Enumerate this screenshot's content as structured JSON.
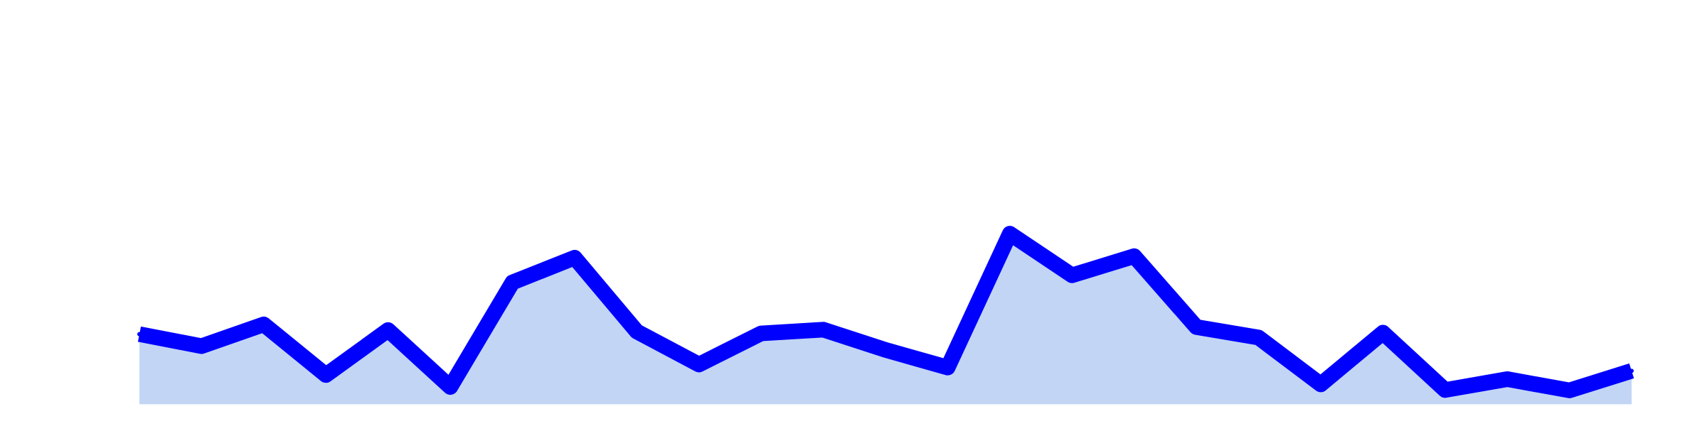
{
  "chart_data": {
    "type": "area",
    "x": [
      1,
      2,
      3,
      4,
      5,
      6,
      7,
      8,
      9,
      10,
      11,
      12,
      13,
      14,
      15,
      16,
      17,
      18,
      19,
      20,
      21,
      22,
      23,
      24,
      25
    ],
    "values": [
      18.7,
      15.5,
      21.3,
      7.8,
      19.8,
      4.6,
      32.5,
      39.1,
      19.4,
      10.6,
      18.9,
      19.9,
      14.5,
      9.8,
      45.5,
      34.4,
      39.5,
      20.6,
      17.8,
      5.3,
      19.1,
      3.8,
      6.7,
      3.7,
      8.9
    ],
    "ylim": [
      -0.5,
      105
    ],
    "xlim": [
      1,
      25
    ],
    "grid": false,
    "legend": "none",
    "colors": {
      "line": "#0000ff",
      "fill": "#c2d5f5"
    }
  }
}
